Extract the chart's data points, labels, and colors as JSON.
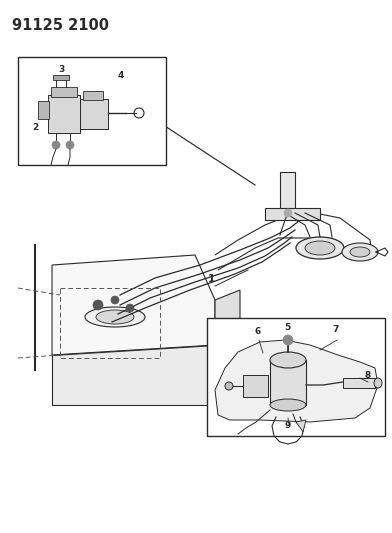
{
  "title": "91125 2100",
  "bg_color": "#ffffff",
  "line_color": "#2a2a2a",
  "fig_width": 3.92,
  "fig_height": 5.33,
  "dpi": 100,
  "title_fontsize": 10.5,
  "title_fontweight": "bold"
}
